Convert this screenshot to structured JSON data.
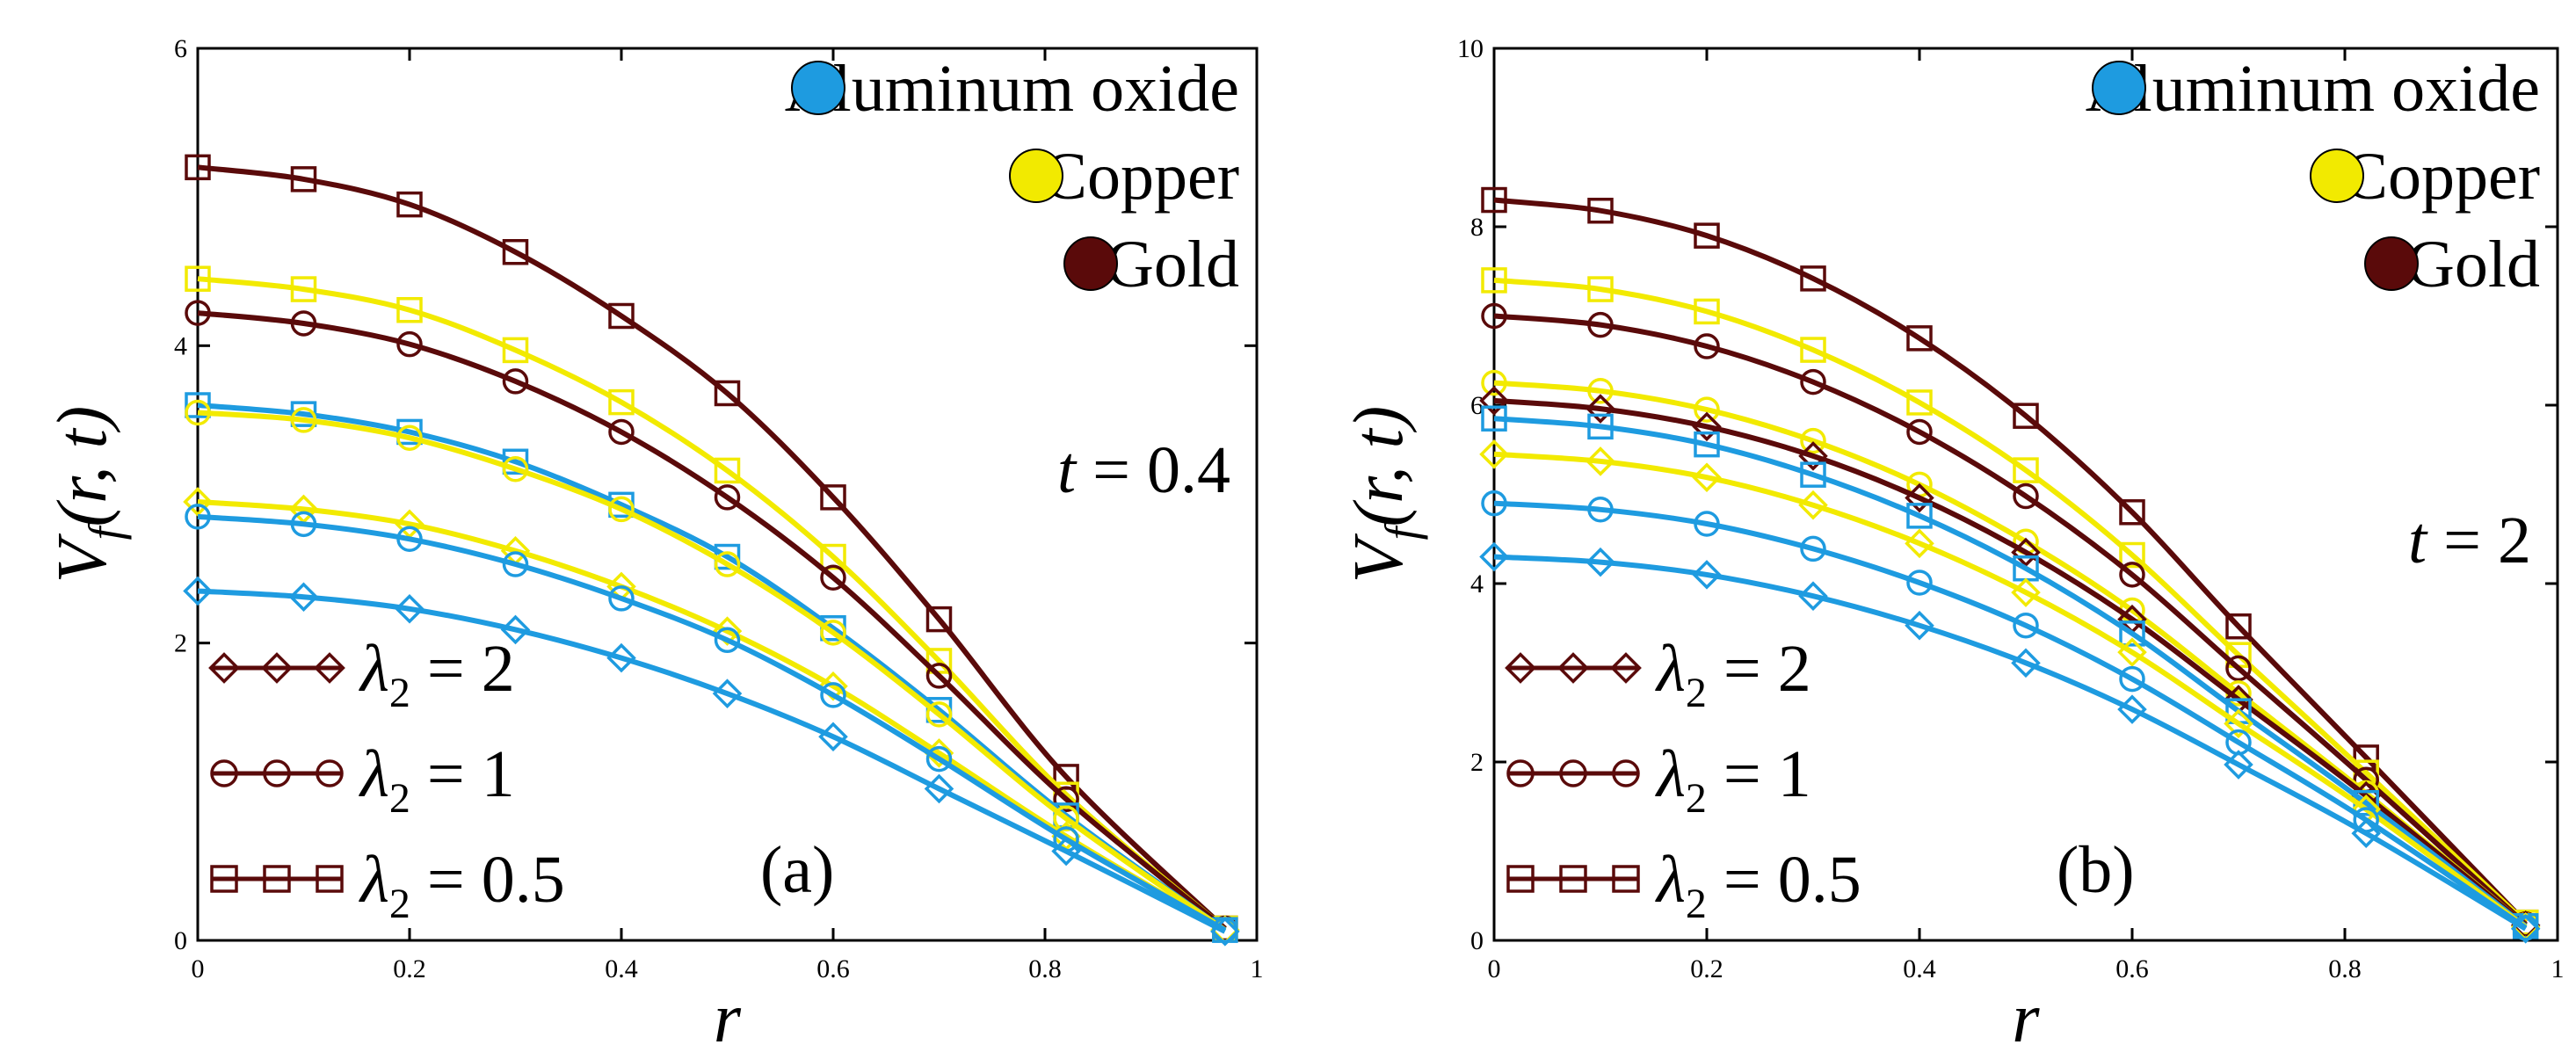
{
  "colors": {
    "Aluminum oxide": "#1e9be0",
    "Copper": "#f2ea00",
    "Gold": "#5a0a0a"
  },
  "legend_materials": [
    "Aluminum oxide",
    "Copper",
    "Gold"
  ],
  "chart_data": [
    {
      "type": "line",
      "panel_label": "(a)",
      "annotation": {
        "var": "t",
        "text": "= 0.4"
      },
      "xlabel": "r",
      "ylabel": {
        "main": "V",
        "sub": "f",
        "args": "(r, t)"
      },
      "xlim": [
        0,
        1
      ],
      "ylim": [
        0,
        6
      ],
      "xticks": [
        "0",
        "0.2",
        "0.4",
        "0.6",
        "0.8",
        "1"
      ],
      "yticks": [
        "0",
        "2",
        "4",
        "6"
      ],
      "grid": false,
      "legend": {
        "materials_position": "top-right",
        "lambda_position": "bottom-left",
        "lambda_entries": [
          {
            "marker": "diamond",
            "text": "= 2"
          },
          {
            "marker": "circle",
            "text": "= 1"
          },
          {
            "marker": "square",
            "text": "= 0.5"
          }
        ]
      },
      "series": [
        {
          "material": "Gold",
          "lambda2": 0.5,
          "marker": "square",
          "x": [
            0,
            0.1,
            0.2,
            0.3,
            0.4,
            0.5,
            0.6,
            0.7,
            0.82,
            0.97
          ],
          "y": [
            5.2,
            5.12,
            4.95,
            4.63,
            4.2,
            3.68,
            2.98,
            2.16,
            1.1,
            0.08
          ]
        },
        {
          "material": "Copper",
          "lambda2": 0.5,
          "marker": "square",
          "x": [
            0,
            0.1,
            0.2,
            0.3,
            0.4,
            0.5,
            0.6,
            0.7,
            0.82,
            0.97
          ],
          "y": [
            4.45,
            4.38,
            4.24,
            3.97,
            3.62,
            3.16,
            2.58,
            1.88,
            0.98,
            0.08
          ]
        },
        {
          "material": "Gold",
          "lambda2": 1,
          "marker": "circle",
          "x": [
            0,
            0.1,
            0.2,
            0.3,
            0.4,
            0.5,
            0.6,
            0.7,
            0.82,
            0.97
          ],
          "y": [
            4.22,
            4.15,
            4.01,
            3.76,
            3.42,
            2.98,
            2.44,
            1.78,
            0.95,
            0.08
          ]
        },
        {
          "material": "Aluminum oxide",
          "lambda2": 0.5,
          "marker": "square",
          "x": [
            0,
            0.1,
            0.2,
            0.3,
            0.4,
            0.5,
            0.6,
            0.7,
            0.82,
            0.97
          ],
          "y": [
            3.6,
            3.54,
            3.42,
            3.22,
            2.93,
            2.58,
            2.1,
            1.55,
            0.84,
            0.07
          ]
        },
        {
          "material": "Copper",
          "lambda2": 1,
          "marker": "circle",
          "x": [
            0,
            0.1,
            0.2,
            0.3,
            0.4,
            0.5,
            0.6,
            0.7,
            0.82,
            0.97
          ],
          "y": [
            3.55,
            3.5,
            3.38,
            3.17,
            2.9,
            2.53,
            2.07,
            1.52,
            0.82,
            0.07
          ]
        },
        {
          "material": "Copper",
          "lambda2": 2,
          "marker": "diamond",
          "x": [
            0,
            0.1,
            0.2,
            0.3,
            0.4,
            0.5,
            0.6,
            0.7,
            0.82,
            0.97
          ],
          "y": [
            2.95,
            2.9,
            2.8,
            2.62,
            2.38,
            2.08,
            1.71,
            1.26,
            0.7,
            0.07
          ]
        },
        {
          "material": "Aluminum oxide",
          "lambda2": 1,
          "marker": "circle",
          "x": [
            0,
            0.1,
            0.2,
            0.3,
            0.4,
            0.5,
            0.6,
            0.7,
            0.82,
            0.97
          ],
          "y": [
            2.85,
            2.8,
            2.7,
            2.53,
            2.3,
            2.02,
            1.65,
            1.22,
            0.68,
            0.07
          ]
        },
        {
          "material": "Aluminum oxide",
          "lambda2": 2,
          "marker": "diamond",
          "x": [
            0,
            0.1,
            0.2,
            0.3,
            0.4,
            0.5,
            0.6,
            0.7,
            0.82,
            0.97
          ],
          "y": [
            2.35,
            2.31,
            2.23,
            2.09,
            1.9,
            1.66,
            1.37,
            1.02,
            0.6,
            0.06
          ]
        }
      ]
    },
    {
      "type": "line",
      "panel_label": "(b)",
      "annotation": {
        "var": "t",
        "text": "= 2"
      },
      "xlabel": "r",
      "ylabel": {
        "main": "V",
        "sub": "f",
        "args": "(r, t)"
      },
      "xlim": [
        0,
        1
      ],
      "ylim": [
        0,
        10
      ],
      "xticks": [
        "0",
        "0.2",
        "0.4",
        "0.6",
        "0.8",
        "1"
      ],
      "yticks": [
        "0",
        "2",
        "4",
        "6",
        "8",
        "10"
      ],
      "grid": false,
      "legend": {
        "materials_position": "top-right",
        "lambda_position": "bottom-left",
        "lambda_entries": [
          {
            "marker": "diamond",
            "text": "= 2"
          },
          {
            "marker": "circle",
            "text": "= 1"
          },
          {
            "marker": "square",
            "text": "= 0.5"
          }
        ]
      },
      "series": [
        {
          "material": "Gold",
          "lambda2": 0.5,
          "marker": "square",
          "x": [
            0,
            0.1,
            0.2,
            0.3,
            0.4,
            0.5,
            0.6,
            0.7,
            0.82,
            0.97
          ],
          "y": [
            8.3,
            8.18,
            7.9,
            7.42,
            6.75,
            5.88,
            4.8,
            3.52,
            2.05,
            0.2
          ]
        },
        {
          "material": "Copper",
          "lambda2": 0.5,
          "marker": "square",
          "x": [
            0,
            0.1,
            0.2,
            0.3,
            0.4,
            0.5,
            0.6,
            0.7,
            0.82,
            0.97
          ],
          "y": [
            7.4,
            7.3,
            7.05,
            6.62,
            6.03,
            5.27,
            4.32,
            3.2,
            1.88,
            0.2
          ]
        },
        {
          "material": "Gold",
          "lambda2": 1,
          "marker": "circle",
          "x": [
            0,
            0.1,
            0.2,
            0.3,
            0.4,
            0.5,
            0.6,
            0.7,
            0.82,
            0.97
          ],
          "y": [
            7.0,
            6.9,
            6.66,
            6.26,
            5.7,
            4.98,
            4.1,
            3.05,
            1.8,
            0.18
          ]
        },
        {
          "material": "Copper",
          "lambda2": 1,
          "marker": "circle",
          "x": [
            0,
            0.1,
            0.2,
            0.3,
            0.4,
            0.5,
            0.6,
            0.7,
            0.82,
            0.97
          ],
          "y": [
            6.25,
            6.16,
            5.95,
            5.6,
            5.11,
            4.47,
            3.7,
            2.77,
            1.65,
            0.17
          ]
        },
        {
          "material": "Gold",
          "lambda2": 2,
          "marker": "diamond",
          "x": [
            0,
            0.1,
            0.2,
            0.3,
            0.4,
            0.5,
            0.6,
            0.7,
            0.82,
            0.97
          ],
          "y": [
            6.05,
            5.96,
            5.76,
            5.43,
            4.96,
            4.35,
            3.6,
            2.7,
            1.62,
            0.17
          ]
        },
        {
          "material": "Aluminum oxide",
          "lambda2": 0.5,
          "marker": "square",
          "x": [
            0,
            0.1,
            0.2,
            0.3,
            0.4,
            0.5,
            0.6,
            0.7,
            0.82,
            0.97
          ],
          "y": [
            5.85,
            5.76,
            5.56,
            5.22,
            4.76,
            4.17,
            3.44,
            2.57,
            1.54,
            0.16
          ]
        },
        {
          "material": "Copper",
          "lambda2": 2,
          "marker": "diamond",
          "x": [
            0,
            0.1,
            0.2,
            0.3,
            0.4,
            0.5,
            0.6,
            0.7,
            0.82,
            0.97
          ],
          "y": [
            5.45,
            5.37,
            5.19,
            4.88,
            4.45,
            3.9,
            3.23,
            2.43,
            1.47,
            0.15
          ]
        },
        {
          "material": "Aluminum oxide",
          "lambda2": 1,
          "marker": "circle",
          "x": [
            0,
            0.1,
            0.2,
            0.3,
            0.4,
            0.5,
            0.6,
            0.7,
            0.82,
            0.97
          ],
          "y": [
            4.9,
            4.83,
            4.67,
            4.39,
            4.01,
            3.53,
            2.93,
            2.22,
            1.35,
            0.14
          ]
        },
        {
          "material": "Aluminum oxide",
          "lambda2": 2,
          "marker": "diamond",
          "x": [
            0,
            0.1,
            0.2,
            0.3,
            0.4,
            0.5,
            0.6,
            0.7,
            0.82,
            0.97
          ],
          "y": [
            4.3,
            4.24,
            4.1,
            3.86,
            3.53,
            3.11,
            2.59,
            1.97,
            1.2,
            0.13
          ]
        }
      ]
    }
  ]
}
